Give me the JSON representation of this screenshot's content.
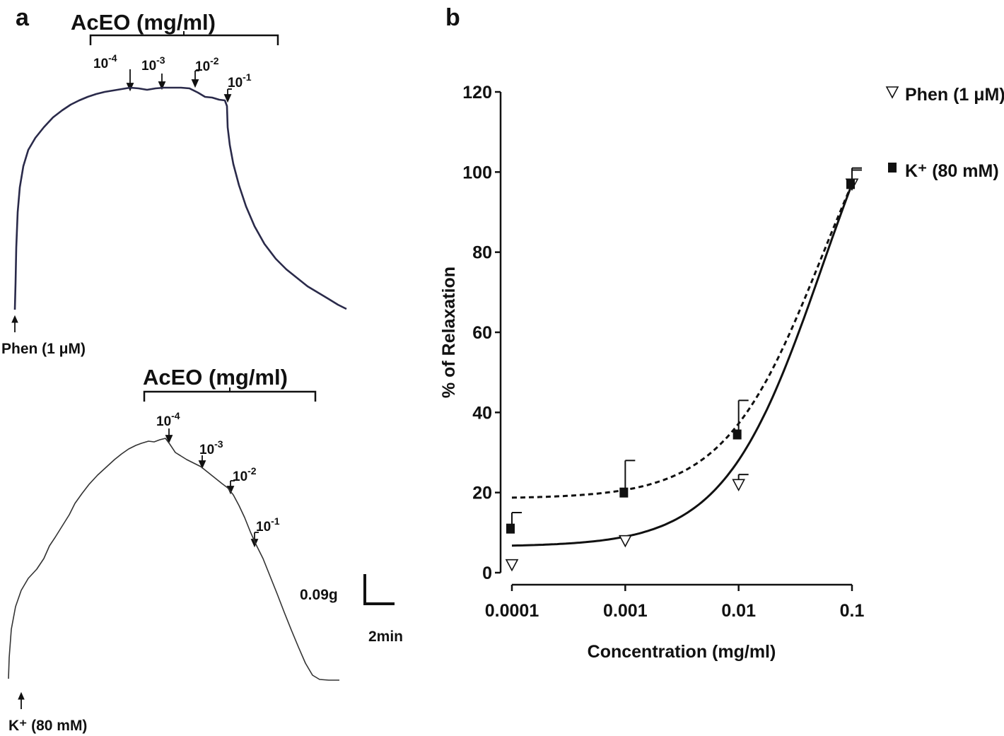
{
  "panel_a": {
    "letter": "a",
    "top_trace": {
      "bracket_label": "AcEO (mg/ml)",
      "doses": [
        "10",
        "10",
        "10",
        "10"
      ],
      "exponents": [
        "-4",
        "-3",
        "-2",
        "-1"
      ],
      "stimulus_label": "Phen (1 μM)"
    },
    "bottom_trace": {
      "bracket_label": "AcEO (mg/ml)",
      "doses": [
        "10",
        "10",
        "10",
        "10"
      ],
      "exponents": [
        "-4",
        "-3",
        "-2",
        "-1"
      ],
      "stimulus_label": "K⁺ (80 mM)"
    },
    "scale_bar": {
      "force_label": "0.09g",
      "time_label": "2min"
    }
  },
  "panel_b": {
    "letter": "b"
  },
  "chart_data": {
    "type": "scatter",
    "xscale": "log",
    "xlabel": "Concentration (mg/ml)",
    "ylabel": "% of Relaxation",
    "x_tick_labels": [
      "0.0001",
      "0.001",
      "0.01",
      "0.1"
    ],
    "x_ticks": [
      0.0001,
      0.001,
      0.01,
      0.1
    ],
    "y_tick_labels": [
      "0",
      "20",
      "40",
      "60",
      "80",
      "100",
      "120"
    ],
    "ylim": [
      0,
      120
    ],
    "legend_position": "top-right",
    "series": [
      {
        "name": "Phen (1 μM)",
        "marker": "open-triangle-down",
        "line_style": "solid",
        "color": "#111111",
        "x": [
          0.0001,
          0.001,
          0.01,
          0.1
        ],
        "y": [
          2,
          8,
          22,
          97
        ],
        "err": [
          0,
          0,
          2.5,
          3.5
        ],
        "fit_min": 6.5,
        "fit_max": 97,
        "fit_ec": 0.055
      },
      {
        "name": "K⁺ (80 mM)",
        "marker": "filled-square",
        "line_style": "dashed",
        "color": "#111111",
        "x": [
          0.0001,
          0.001,
          0.01,
          0.1
        ],
        "y": [
          11,
          20,
          34.5,
          97
        ],
        "err": [
          4,
          8,
          8.5,
          4
        ],
        "fit_min": 18.5,
        "fit_max": 97,
        "fit_ec": 0.055
      }
    ]
  }
}
